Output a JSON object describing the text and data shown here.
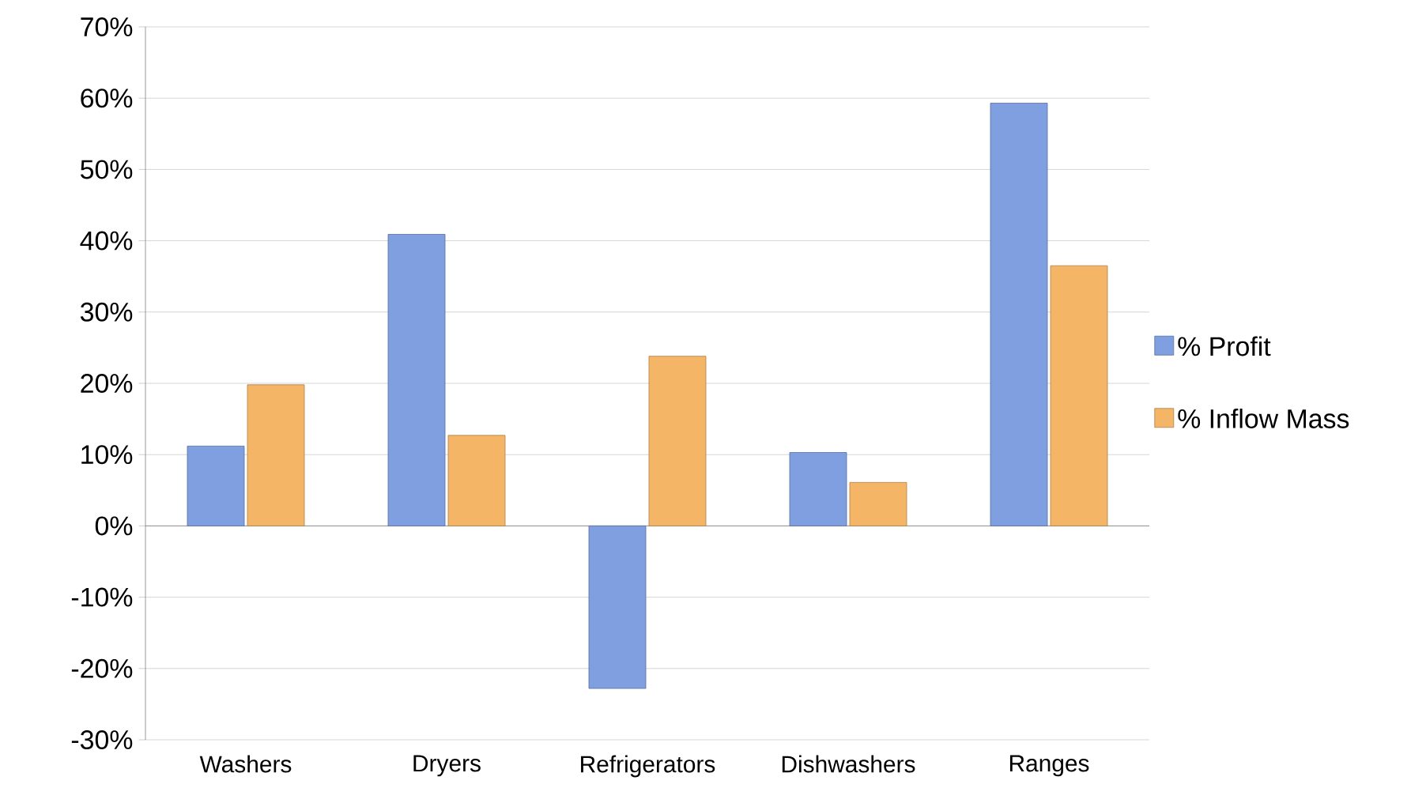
{
  "chart_data": {
    "type": "bar",
    "categories": [
      "Washers",
      "Dryers",
      "Refrigerators",
      "Dishwashers",
      "Ranges"
    ],
    "series": [
      {
        "name": "% Profit",
        "color": "#7f9fe0",
        "values": [
          11.2,
          40.9,
          -22.8,
          10.3,
          59.3
        ]
      },
      {
        "name": "% Inflow Mass",
        "color": "#f5b567",
        "values": [
          19.8,
          12.7,
          23.8,
          6.1,
          36.5
        ]
      }
    ],
    "ylim": [
      -30,
      70
    ],
    "yticks": [
      {
        "value": -30,
        "label": "-30%"
      },
      {
        "value": -20,
        "label": "-20%"
      },
      {
        "value": -10,
        "label": "-10%"
      },
      {
        "value": 0,
        "label": "0%"
      },
      {
        "value": 10,
        "label": "10%"
      },
      {
        "value": 20,
        "label": "20%"
      },
      {
        "value": 30,
        "label": "30%"
      },
      {
        "value": 40,
        "label": "40%"
      },
      {
        "value": 50,
        "label": "50%"
      },
      {
        "value": 60,
        "label": "60%"
      },
      {
        "value": 70,
        "label": "70%"
      }
    ],
    "grid": "y",
    "legend": "right"
  }
}
